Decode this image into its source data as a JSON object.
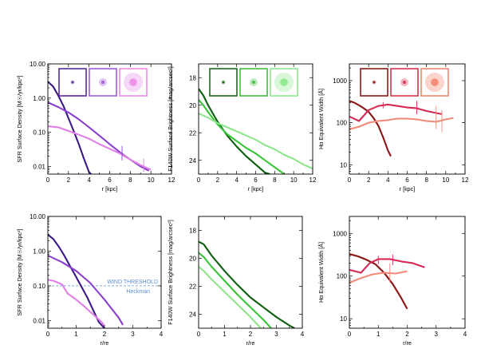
{
  "chart_data": [
    {
      "id": "sfr_r",
      "type": "line",
      "xlabel": "r [kpc]",
      "ylabel": "SFR Surface Density  [M☉/yr/kpc²]",
      "xlim": [
        0,
        12
      ],
      "ylim": [
        0.006,
        10
      ],
      "yscale": "log",
      "xticks": [
        0,
        2,
        4,
        6,
        8,
        10,
        12
      ],
      "yticks": [
        0.01,
        0.1,
        1,
        10
      ],
      "ytick_labels": [
        "0.01",
        "0.10",
        "1.00",
        "10.00"
      ],
      "insets": [
        {
          "color": "#5c2a9d"
        },
        {
          "color": "#a05ad6"
        },
        {
          "color": "#e98ce8"
        }
      ],
      "series": [
        {
          "color": "#3d1a86",
          "x": [
            0,
            0.5,
            1,
            1.5,
            2,
            2.5,
            3,
            3.5,
            4,
            4.2
          ],
          "y": [
            3.0,
            2.2,
            1.2,
            0.6,
            0.26,
            0.11,
            0.045,
            0.017,
            0.0068,
            0.006
          ]
        },
        {
          "color": "#8a3fcf",
          "x": [
            0,
            1,
            2,
            3,
            4,
            5,
            6,
            7,
            8,
            9,
            9.8
          ],
          "y": [
            0.75,
            0.55,
            0.38,
            0.24,
            0.14,
            0.08,
            0.045,
            0.026,
            0.016,
            0.01,
            0.0075
          ]
        },
        {
          "color": "#e07fe6",
          "x": [
            0,
            1,
            2,
            3,
            4,
            5,
            6,
            7,
            8,
            9,
            10
          ],
          "y": [
            0.15,
            0.14,
            0.11,
            0.085,
            0.065,
            0.045,
            0.033,
            0.024,
            0.016,
            0.011,
            0.008
          ]
        }
      ],
      "errorbars": [
        {
          "color": "#8a3fcf",
          "x": 7.2,
          "y": 0.025,
          "lo": 0.015,
          "hi": 0.04
        },
        {
          "color": "#e07fe6",
          "x": 9.3,
          "y": 0.011,
          "lo": 0.007,
          "hi": 0.017
        }
      ]
    },
    {
      "id": "f140_r",
      "type": "line",
      "xlabel": "r [kpc]",
      "ylabel": "F140W Surface Brightness [mag/arcsec²]",
      "xlim": [
        0,
        12
      ],
      "ylim": [
        17,
        25
      ],
      "yscale": "linear",
      "yinvert": true,
      "xticks": [
        0,
        2,
        4,
        6,
        8,
        10,
        12
      ],
      "yticks": [
        18,
        20,
        22,
        24
      ],
      "ytick_labels": [
        "18",
        "20",
        "22",
        "24"
      ],
      "insets": [
        {
          "color": "#1d6b1d"
        },
        {
          "color": "#3fbf3f"
        },
        {
          "color": "#8ee88e"
        }
      ],
      "series": [
        {
          "color": "#0b5e0b",
          "x": [
            0,
            0.5,
            1,
            2,
            3,
            4,
            5,
            6,
            7,
            7.5
          ],
          "y": [
            18.8,
            19.3,
            20.0,
            21.2,
            22.2,
            23.0,
            23.7,
            24.3,
            24.9,
            25.0
          ]
        },
        {
          "color": "#39c43a",
          "x": [
            0,
            0.5,
            1,
            2,
            3,
            4,
            5,
            6,
            7,
            8,
            9
          ],
          "y": [
            19.6,
            20.0,
            20.5,
            21.4,
            22.1,
            22.6,
            23.1,
            23.5,
            24.0,
            24.5,
            25.0
          ]
        },
        {
          "color": "#8fe58c",
          "x": [
            0,
            1,
            2,
            3,
            4,
            5,
            6,
            7,
            8,
            9,
            10,
            11,
            12
          ],
          "y": [
            20.6,
            20.9,
            21.3,
            21.6,
            21.9,
            22.2,
            22.5,
            22.9,
            23.2,
            23.6,
            23.9,
            24.3,
            24.6
          ]
        }
      ],
      "errorbars": []
    },
    {
      "id": "ha_r",
      "type": "line",
      "xlabel": "r [kpc]",
      "ylabel": "Hα Equivalent Width [Å]",
      "xlim": [
        0,
        12
      ],
      "ylim": [
        6,
        2500
      ],
      "yscale": "log",
      "xticks": [
        0,
        2,
        4,
        6,
        8,
        10,
        12
      ],
      "yticks": [
        10,
        100,
        1000
      ],
      "ytick_labels": [
        "10",
        "100",
        "1000"
      ],
      "insets": [
        {
          "color": "#8b1a1a"
        },
        {
          "color": "#d8334d"
        },
        {
          "color": "#f4866f"
        }
      ],
      "series": [
        {
          "color": "#8b1414",
          "x": [
            0,
            0.5,
            1,
            1.5,
            2,
            2.5,
            3,
            3.5,
            4,
            4.3
          ],
          "y": [
            330,
            300,
            260,
            220,
            180,
            130,
            85,
            45,
            22,
            16
          ]
        },
        {
          "color": "#d42a55",
          "x": [
            0,
            1,
            2,
            3,
            4,
            5,
            6,
            7,
            8,
            9,
            9.6
          ],
          "y": [
            140,
            110,
            200,
            250,
            270,
            250,
            230,
            220,
            190,
            170,
            160
          ]
        },
        {
          "color": "#f28a78",
          "x": [
            0,
            1,
            2,
            3,
            4,
            5,
            6,
            7,
            8,
            9,
            10,
            10.8
          ],
          "y": [
            70,
            80,
            100,
            110,
            115,
            125,
            125,
            120,
            110,
            105,
            120,
            130
          ]
        }
      ],
      "errorbars": [
        {
          "color": "#d42a55",
          "x": 3.5,
          "y": 260,
          "lo": 220,
          "hi": 310
        },
        {
          "color": "#d42a55",
          "x": 7.0,
          "y": 220,
          "lo": 160,
          "hi": 330
        },
        {
          "color": "#f28a78",
          "x": 9.0,
          "y": 110,
          "lo": 70,
          "hi": 250
        },
        {
          "color": "#f28a78",
          "x": 9.6,
          "y": 115,
          "lo": 60,
          "hi": 200
        }
      ]
    },
    {
      "id": "sfr_re",
      "type": "line",
      "xlabel": "r/re",
      "ylabel": "SFR Surface Density  [M☉/yr/kpc²]",
      "xlim": [
        0,
        4
      ],
      "ylim": [
        0.006,
        10
      ],
      "yscale": "log",
      "xticks": [
        0,
        1,
        2,
        3,
        4
      ],
      "yticks": [
        0.01,
        0.1,
        1,
        10
      ],
      "ytick_labels": [
        "0.01",
        "0.10",
        "1.00",
        "10.00"
      ],
      "insets": [],
      "threshold": {
        "y": 0.1,
        "color": "#5b8fd0",
        "label1": "WIND THRESHOLD",
        "label2": "Heckman"
      },
      "series": [
        {
          "color": "#3d1a86",
          "x": [
            0,
            0.2,
            0.4,
            0.6,
            0.8,
            1.0,
            1.2,
            1.4,
            1.6,
            1.8,
            2.0
          ],
          "y": [
            3.0,
            2.2,
            1.3,
            0.7,
            0.35,
            0.18,
            0.09,
            0.045,
            0.02,
            0.009,
            0.006
          ]
        },
        {
          "color": "#8a3fcf",
          "x": [
            0,
            0.5,
            1.0,
            1.5,
            2.0,
            2.5,
            2.65
          ],
          "y": [
            0.75,
            0.48,
            0.27,
            0.12,
            0.04,
            0.012,
            0.0075
          ]
        },
        {
          "color": "#e07fe6",
          "x": [
            0,
            0.2,
            0.5,
            0.7,
            1.0,
            1.3,
            1.6,
            1.9,
            2.0
          ],
          "y": [
            0.15,
            0.14,
            0.11,
            0.06,
            0.04,
            0.025,
            0.015,
            0.009,
            0.007
          ]
        }
      ],
      "errorbars": []
    },
    {
      "id": "f140_re",
      "type": "line",
      "xlabel": "r/re",
      "ylabel": "F140W Surface Brightness [mag/arcsec²]",
      "xlim": [
        0,
        4
      ],
      "ylim": [
        17,
        25
      ],
      "yscale": "linear",
      "yinvert": true,
      "xticks": [
        0,
        1,
        2,
        3,
        4
      ],
      "yticks": [
        18,
        20,
        22,
        24
      ],
      "ytick_labels": [
        "18",
        "20",
        "22",
        "24"
      ],
      "insets": [],
      "series": [
        {
          "color": "#0b5e0b",
          "x": [
            0,
            0.2,
            0.5,
            1.0,
            1.5,
            2.0,
            2.5,
            3.0,
            3.5,
            3.7
          ],
          "y": [
            18.8,
            19.0,
            19.8,
            20.9,
            21.9,
            22.8,
            23.5,
            24.2,
            24.8,
            25.0
          ]
        },
        {
          "color": "#39c43a",
          "x": [
            0,
            0.2,
            0.5,
            1.0,
            1.5,
            2.0,
            2.5,
            2.8
          ],
          "y": [
            19.6,
            19.9,
            20.6,
            21.6,
            22.6,
            23.5,
            24.4,
            25.0
          ]
        },
        {
          "color": "#8fe58c",
          "x": [
            0,
            0.2,
            0.5,
            1.0,
            1.5,
            2.0,
            2.4
          ],
          "y": [
            20.6,
            20.9,
            21.5,
            22.4,
            23.3,
            24.2,
            25.0
          ]
        }
      ],
      "errorbars": []
    },
    {
      "id": "ha_re",
      "type": "line",
      "xlabel": "r/re",
      "ylabel": "Hα Equivalent Width [Å]",
      "xlim": [
        0,
        4
      ],
      "ylim": [
        6,
        2500
      ],
      "yscale": "log",
      "xticks": [
        0,
        1,
        2,
        3,
        4
      ],
      "yticks": [
        10,
        100,
        1000
      ],
      "ytick_labels": [
        "10",
        "100",
        "1000"
      ],
      "insets": [],
      "series": [
        {
          "color": "#8b1414",
          "x": [
            0,
            0.3,
            0.6,
            0.9,
            1.2,
            1.5,
            1.8,
            2.0
          ],
          "y": [
            330,
            290,
            240,
            190,
            120,
            65,
            30,
            17
          ]
        },
        {
          "color": "#d42a55",
          "x": [
            0,
            0.4,
            0.7,
            1.0,
            1.4,
            1.8,
            2.2,
            2.6
          ],
          "y": [
            140,
            120,
            200,
            250,
            250,
            220,
            200,
            160
          ]
        },
        {
          "color": "#f28a78",
          "x": [
            0,
            0.4,
            0.8,
            1.2,
            1.6,
            2.0
          ],
          "y": [
            70,
            90,
            110,
            120,
            115,
            130
          ]
        }
      ],
      "errorbars": [
        {
          "color": "#d42a55",
          "x": 1.5,
          "y": 240,
          "lo": 180,
          "hi": 320
        },
        {
          "color": "#f28a78",
          "x": 1.4,
          "y": 115,
          "lo": 70,
          "hi": 200
        },
        {
          "color": "#d42a55",
          "x": 1.0,
          "y": 250,
          "lo": 190,
          "hi": 300
        }
      ]
    }
  ]
}
